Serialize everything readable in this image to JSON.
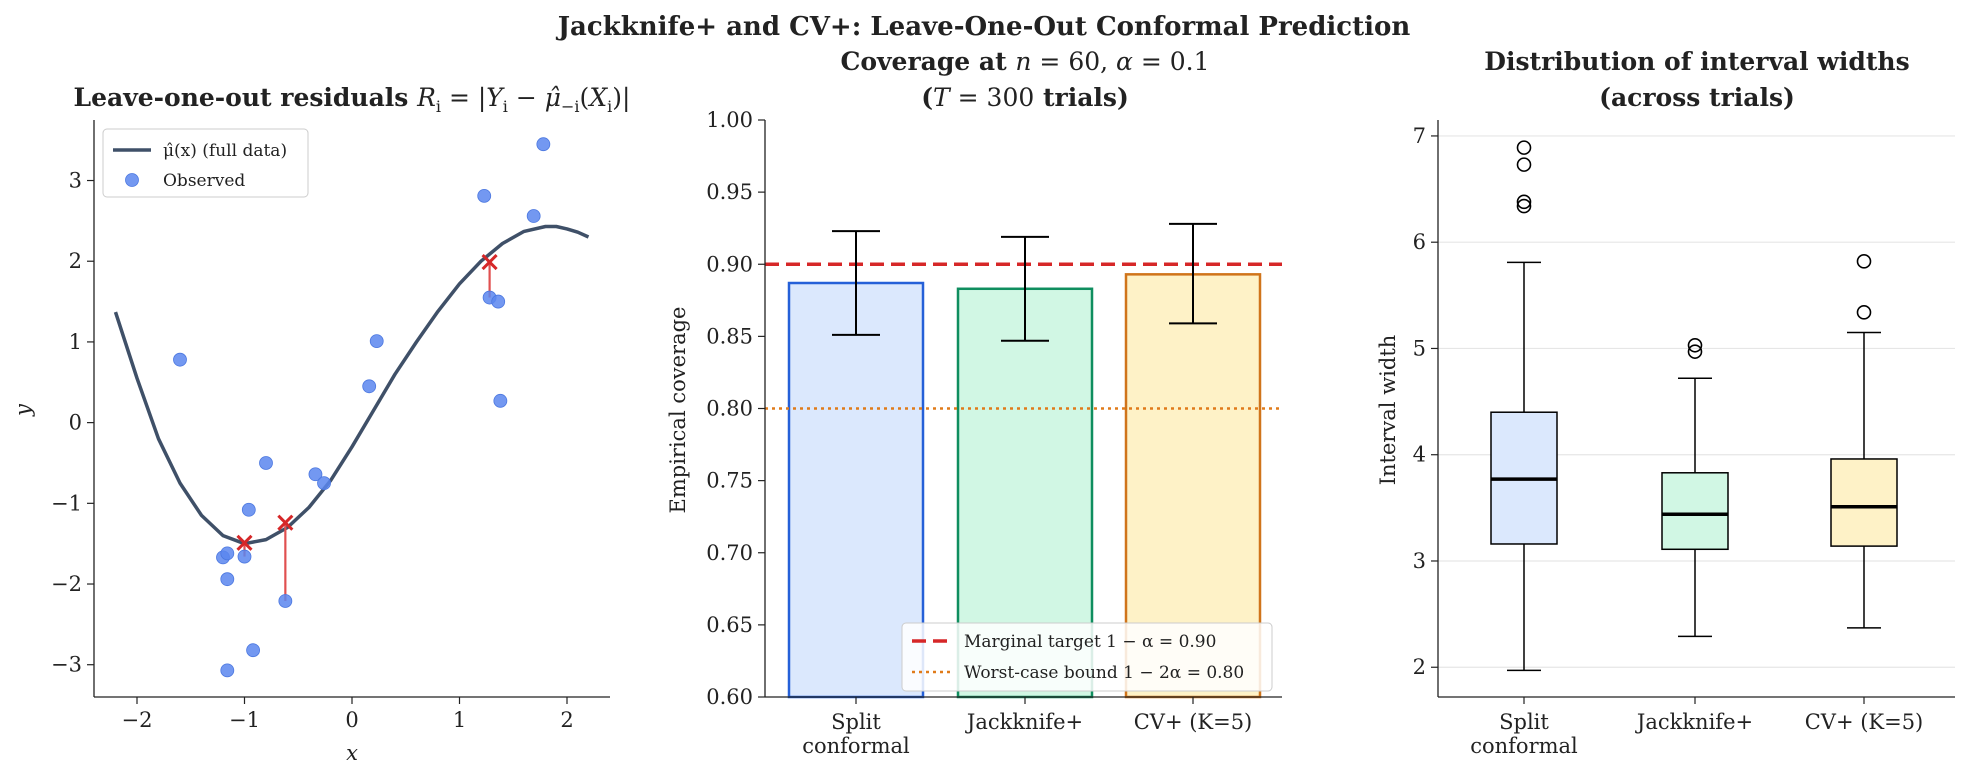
{
  "figure": {
    "suptitle": "Jackknife+ and CV+: Leave-One-Out Conformal Prediction"
  },
  "chart_data": [
    {
      "type": "scatter",
      "title": "Leave-one-out residuals R_i = |Y_i − μ̂₋ᵢ(X_i)|",
      "xlabel": "x",
      "ylabel": "y",
      "xlim": [
        -2.4,
        2.4
      ],
      "ylim": [
        -3.4,
        3.75
      ],
      "xticks": [
        -2,
        -1,
        0,
        1,
        2
      ],
      "yticks": [
        -3,
        -2,
        -1,
        0,
        1,
        2,
        3
      ],
      "legend_position": "upper-left",
      "legend": [
        {
          "label": "μ̂(x) (full data)",
          "kind": "line"
        },
        {
          "label": "Observed",
          "kind": "point"
        }
      ],
      "curve": {
        "name": "μ̂(x) (full data)",
        "x": [
          -2.2,
          -2.0,
          -1.8,
          -1.6,
          -1.4,
          -1.2,
          -1.0,
          -0.8,
          -0.6,
          -0.4,
          -0.2,
          0.0,
          0.2,
          0.4,
          0.6,
          0.8,
          1.0,
          1.2,
          1.4,
          1.6,
          1.8,
          1.9,
          2.0,
          2.1,
          2.2
        ],
        "y": [
          1.37,
          0.55,
          -0.2,
          -0.75,
          -1.15,
          -1.4,
          -1.5,
          -1.45,
          -1.3,
          -1.05,
          -0.72,
          -0.3,
          0.15,
          0.6,
          1.0,
          1.38,
          1.72,
          2.0,
          2.22,
          2.37,
          2.43,
          2.43,
          2.4,
          2.36,
          2.3
        ]
      },
      "points": [
        {
          "x": -1.6,
          "y": 0.78
        },
        {
          "x": -1.2,
          "y": -1.67
        },
        {
          "x": -1.16,
          "y": -1.62
        },
        {
          "x": -1.16,
          "y": -1.94
        },
        {
          "x": -1.16,
          "y": -3.07
        },
        {
          "x": -1.0,
          "y": -1.66
        },
        {
          "x": -0.96,
          "y": -1.08
        },
        {
          "x": -0.92,
          "y": -2.82
        },
        {
          "x": -0.8,
          "y": -0.5
        },
        {
          "x": -0.62,
          "y": -2.21
        },
        {
          "x": -0.34,
          "y": -0.64
        },
        {
          "x": -0.26,
          "y": -0.75
        },
        {
          "x": 0.16,
          "y": 0.45
        },
        {
          "x": 0.23,
          "y": 1.01
        },
        {
          "x": 1.23,
          "y": 2.81
        },
        {
          "x": 1.28,
          "y": 1.55
        },
        {
          "x": 1.36,
          "y": 1.5
        },
        {
          "x": 1.38,
          "y": 0.27
        },
        {
          "x": 1.69,
          "y": 2.56
        },
        {
          "x": 1.78,
          "y": 3.45
        }
      ],
      "loo_predictions": [
        {
          "x": -1.0,
          "y_pred": -1.49,
          "y_obs": -1.66
        },
        {
          "x": -0.62,
          "y_pred": -1.24,
          "y_obs": -2.21
        },
        {
          "x": 1.28,
          "y_pred": 1.99,
          "y_obs": 1.55
        }
      ],
      "colors": {
        "curve": "#3f5068",
        "points": "#5b86ee",
        "loo": "#d62728",
        "residual": "#e05050"
      }
    },
    {
      "type": "bar",
      "title_line1": "Coverage at n = 60, α = 0.1",
      "title_line2": "(T = 300 trials)",
      "ylabel": "Empirical coverage",
      "ylim": [
        0.6,
        1.0
      ],
      "yticks": [
        0.6,
        0.65,
        0.7,
        0.75,
        0.8,
        0.85,
        0.9,
        0.95,
        1.0
      ],
      "categories": [
        "Split\nconformal",
        "Jackknife+",
        "CV+ (K=5)"
      ],
      "values": [
        0.887,
        0.883,
        0.893
      ],
      "err_low": [
        0.851,
        0.847,
        0.859
      ],
      "err_high": [
        0.923,
        0.919,
        0.928
      ],
      "fill_colors": [
        "#dbe8fd",
        "#d1f7e4",
        "#fef2c7"
      ],
      "edge_colors": [
        "#2560d8",
        "#0f8e5f",
        "#d0741a"
      ],
      "reference_lines": [
        {
          "y": 0.9,
          "label": "Marginal target 1 − α = 0.90",
          "style": "dashed",
          "color": "#d62728"
        },
        {
          "y": 0.8,
          "label": "Worst-case bound 1 − 2α = 0.80",
          "style": "dotted",
          "color": "#e07b1a"
        }
      ],
      "legend_position": "lower-right"
    },
    {
      "type": "box",
      "title_line1": "Distribution of interval widths",
      "title_line2": "(across trials)",
      "ylabel": "Interval width",
      "ylim": [
        1.72,
        7.15
      ],
      "yticks": [
        2,
        3,
        4,
        5,
        6,
        7
      ],
      "categories": [
        "Split\nconformal",
        "Jackknife+",
        "CV+ (K=5)"
      ],
      "boxes": [
        {
          "q1": 3.16,
          "median": 3.77,
          "q3": 4.4,
          "whisker_low": 1.97,
          "whisker_high": 5.81,
          "outliers": [
            6.34,
            6.38,
            6.73,
            6.89
          ]
        },
        {
          "q1": 3.11,
          "median": 3.44,
          "q3": 3.83,
          "whisker_low": 2.29,
          "whisker_high": 4.72,
          "outliers": [
            4.97,
            5.03
          ]
        },
        {
          "q1": 3.14,
          "median": 3.51,
          "q3": 3.96,
          "whisker_low": 2.37,
          "whisker_high": 5.15,
          "outliers": [
            5.34,
            5.82
          ]
        }
      ],
      "fill_colors": [
        "#dbe8fd",
        "#d1f7e4",
        "#fef2c7"
      ],
      "grid": "y"
    }
  ]
}
